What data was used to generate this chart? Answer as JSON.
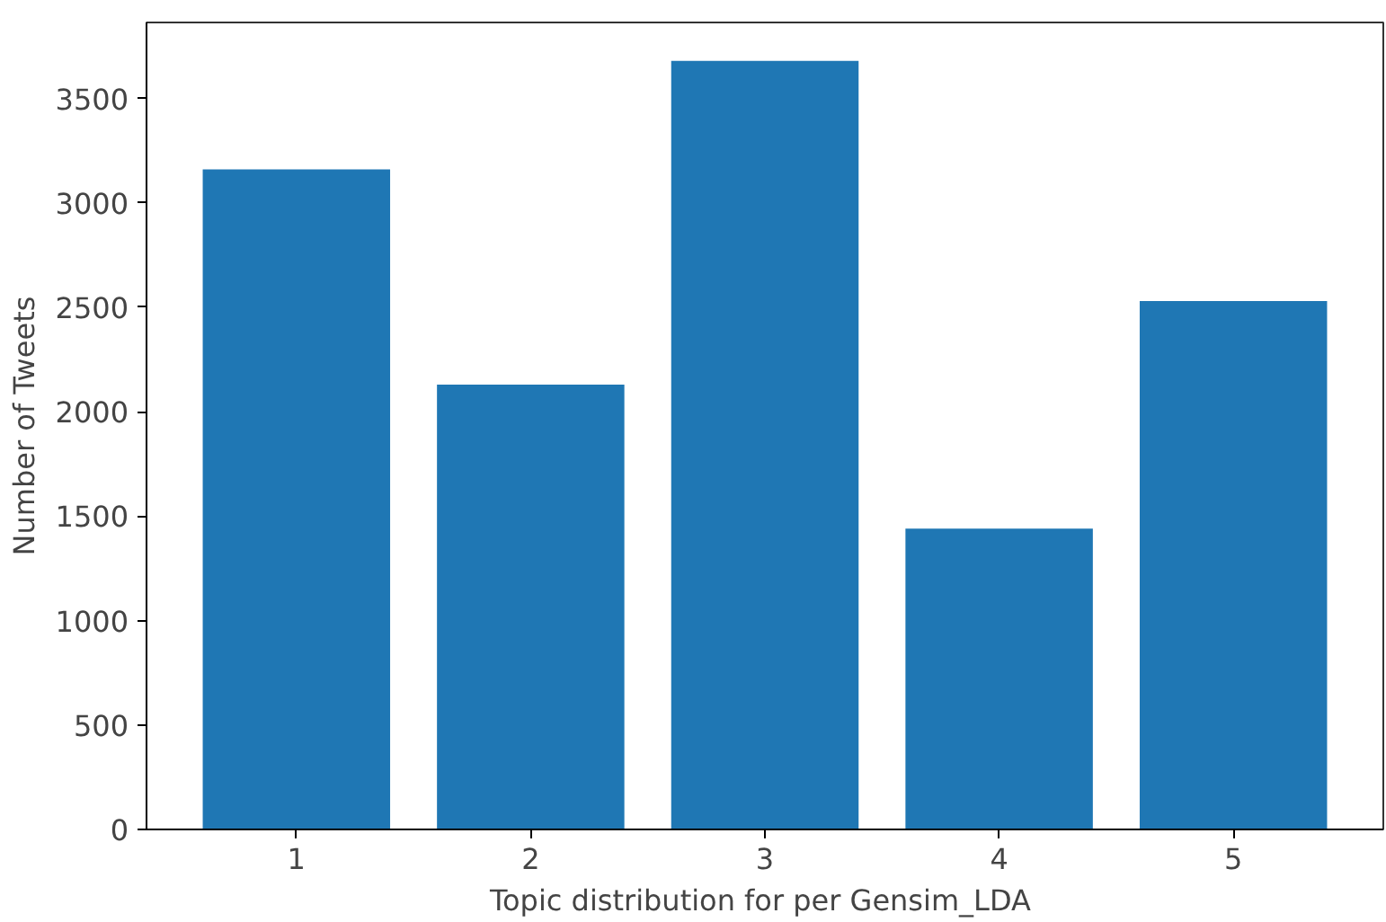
{
  "chart_data": {
    "type": "bar",
    "xlabel": "Topic distribution for  per Gensim_LDA",
    "ylabel": "Number of Tweets",
    "categories": [
      "1",
      "2",
      "3",
      "4",
      "5"
    ],
    "values": [
      3160,
      2130,
      3680,
      1440,
      2530
    ],
    "color": "#1f77b4",
    "ylim": [
      0,
      3864
    ],
    "yticks": [
      0,
      500,
      1000,
      1500,
      2000,
      2500,
      3000,
      3500
    ],
    "grid": false
  }
}
